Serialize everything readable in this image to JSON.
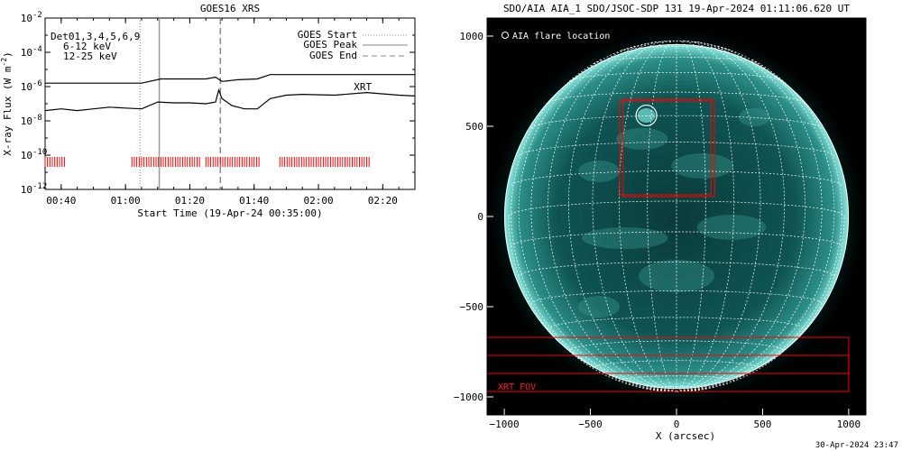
{
  "chart_data": [
    {
      "type": "line",
      "title": "GOES16 XRS",
      "xlabel": "Start Time (19-Apr-24 00:35:00)",
      "ylabel": "X-ray Flux (W m",
      "ylabel_sup": "-2",
      "ylabel_end": ")",
      "ylog": true,
      "ylim": [
        1e-12,
        0.01
      ],
      "xlim_minutes_after_start": [
        0,
        115
      ],
      "x_tick_labels": [
        "00:40",
        "01:00",
        "01:20",
        "01:40",
        "02:00",
        "02:20"
      ],
      "x_tick_minutes": [
        5,
        25,
        45,
        65,
        85,
        105
      ],
      "y_ticks": [
        {
          "exp": -2,
          "label": "10",
          "sup": "-2"
        },
        {
          "exp": -4,
          "label": "10",
          "sup": "-4"
        },
        {
          "exp": -6,
          "label": "10",
          "sup": "-6"
        },
        {
          "exp": -8,
          "label": "10",
          "sup": "-8"
        },
        {
          "exp": -10,
          "label": "10",
          "sup": "-10"
        },
        {
          "exp": -12,
          "label": "10",
          "sup": "-12"
        }
      ],
      "detector_label": "Det01,3,4,5,6,9",
      "band_labels": [
        {
          "text": "6-12 keV",
          "color": "#cc00cc"
        },
        {
          "text": "12-25 keV",
          "color": "#00cc00"
        }
      ],
      "legend": [
        {
          "label": "GOES Start",
          "style": "dotted"
        },
        {
          "label": "GOES Peak",
          "style": "solid"
        },
        {
          "label": "GOES End",
          "style": "dashed"
        }
      ],
      "goes_start_minutes": 29.5,
      "goes_peak_minutes": 35.5,
      "goes_end_minutes": 54.5,
      "series": [
        {
          "name": "",
          "color": "#000000",
          "points": [
            [
              0,
              -5.8
            ],
            [
              30,
              -5.8
            ],
            [
              36,
              -5.55
            ],
            [
              50,
              -5.55
            ],
            [
              53,
              -5.45
            ],
            [
              55,
              -5.7
            ],
            [
              60,
              -5.6
            ],
            [
              66,
              -5.55
            ],
            [
              70,
              -5.3
            ],
            [
              110,
              -5.3
            ],
            [
              115,
              -5.3
            ]
          ]
        },
        {
          "name": "",
          "color": "#000000",
          "points": [
            [
              0,
              -7.4
            ],
            [
              5,
              -7.3
            ],
            [
              10,
              -7.4
            ],
            [
              15,
              -7.3
            ],
            [
              20,
              -7.2
            ],
            [
              25,
              -7.25
            ],
            [
              30,
              -7.3
            ],
            [
              35,
              -6.9
            ],
            [
              40,
              -6.95
            ],
            [
              45,
              -6.95
            ],
            [
              50,
              -7.0
            ],
            [
              53,
              -6.9
            ],
            [
              54,
              -6.2
            ],
            [
              55,
              -6.7
            ],
            [
              58,
              -7.1
            ],
            [
              62,
              -7.3
            ],
            [
              66,
              -7.3
            ],
            [
              70,
              -6.7
            ],
            [
              75,
              -6.5
            ],
            [
              80,
              -6.45
            ],
            [
              90,
              -6.5
            ],
            [
              100,
              -6.35
            ],
            [
              110,
              -6.5
            ],
            [
              115,
              -6.55
            ]
          ]
        }
      ],
      "annotations": [
        {
          "text": "XRT",
          "color": "#ff0000",
          "x_minutes": 96,
          "y_exp": -6.2
        }
      ],
      "xrt_observation_blocks_minutes": [
        [
          0,
          6
        ],
        [
          27,
          48
        ],
        [
          50,
          67
        ],
        [
          73,
          101
        ]
      ],
      "xrt_tick_color": "#ff0000",
      "grid": false
    },
    {
      "type": "image",
      "title": "SDO/AIA AIA_1 SDO/JSOC-SDP 131 19-Apr-2024 01:11:06.620 UT",
      "xlabel": "X (arcsec)",
      "ylabel": "",
      "xlim": [
        -1100,
        1100
      ],
      "ylim": [
        -1100,
        1100
      ],
      "x_ticks": [
        -1000,
        -500,
        0,
        500,
        1000
      ],
      "x_tick_labels": [
        "−1000",
        "−500",
        "0",
        "500",
        "1000"
      ],
      "y_ticks": [
        1000,
        500,
        0,
        -500,
        -1000
      ],
      "y_tick_labels": [
        "1000",
        "500",
        "0",
        "−500",
        "−1000"
      ],
      "legend_text": "AIA flare location",
      "solar_radius_arcsec": 975,
      "flare_location_arcsec": [
        -175,
        560
      ],
      "flare_circle_radius_arcsec": 60,
      "fov_boxes_arcsec": [
        [
          -330,
          120,
          200,
          640
        ],
        [
          -310,
          110,
          220,
          650
        ],
        [
          -1100,
          -970,
          1000,
          -670
        ],
        [
          -1100,
          -870,
          1000,
          -770
        ]
      ],
      "fov_label": "XRT FOV",
      "fov_color": "#ff0000",
      "sun_colors": {
        "background": "#000000",
        "disk": "#0b4a49",
        "bright": "#7de6dd",
        "limb": "#ffffff"
      }
    }
  ],
  "timestamp": "30-Apr-2024 23:47"
}
